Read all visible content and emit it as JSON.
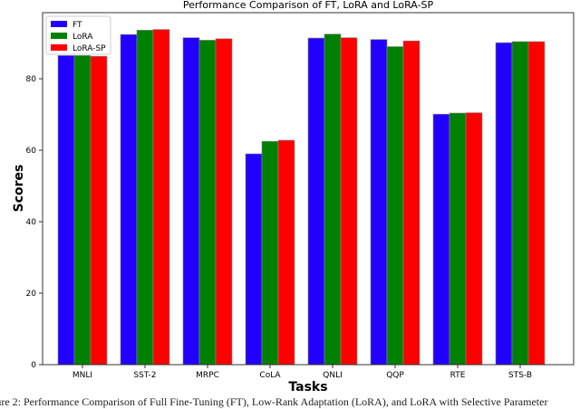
{
  "chart_data": {
    "type": "bar",
    "title": "Performance Comparison of FT, LoRA and LoRA-SP",
    "xlabel": "Tasks",
    "ylabel": "Scores",
    "categories": [
      "MNLI",
      "SST-2",
      "MRPC",
      "CoLA",
      "QNLI",
      "QQP",
      "RTE",
      "STS-B"
    ],
    "series": [
      {
        "name": "FT",
        "color": "#2200ff",
        "values": [
          86.5,
          92.4,
          91.5,
          59.0,
          91.4,
          91.0,
          70.1,
          90.1
        ]
      },
      {
        "name": "LoRA",
        "color": "#008000",
        "values": [
          86.5,
          93.6,
          90.8,
          62.5,
          92.5,
          89.0,
          70.4,
          90.4
        ]
      },
      {
        "name": "LoRA-SP",
        "color": "#ff0000",
        "values": [
          86.3,
          93.8,
          91.2,
          62.8,
          91.5,
          90.6,
          70.5,
          90.4
        ]
      }
    ],
    "ylim": [
      0,
      98.5
    ],
    "yticks": [
      0,
      20,
      40,
      60,
      80
    ],
    "grid": false,
    "legend": "top-left"
  },
  "caption": "igure 2: Performance Comparison of Full Fine-Tuning (FT), Low-Rank Adaptation (LoRA), and LoRA with Selective Parameter"
}
